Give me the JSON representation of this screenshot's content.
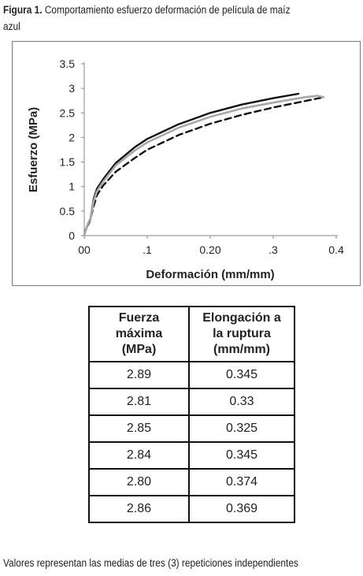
{
  "caption": {
    "label": "Figura 1",
    "separator": ". ",
    "text_line1": "Comportamiento esfuerzo deformación de película de maíz",
    "text_line2": "azul"
  },
  "chart_data": {
    "type": "line",
    "xlabel": "Deformación (mm/mm)",
    "ylabel": "Esfuerzo  (MPa)",
    "xlim": [
      0,
      0.4
    ],
    "ylim": [
      0,
      3.5
    ],
    "x_tick_values": [
      0,
      0.1,
      0.2,
      0.3,
      0.4
    ],
    "x_tick_labels": [
      "00",
      ".1",
      "0.20",
      ".3",
      "0.4"
    ],
    "y_tick_values": [
      0,
      0.5,
      1,
      1.5,
      2,
      2.5,
      3,
      3.5
    ],
    "y_tick_labels": [
      "0",
      "0.5",
      "1",
      "1.5",
      "2",
      "2.5",
      "3",
      "3.5"
    ],
    "grid": false,
    "legend": "none",
    "series": [
      {
        "style": "solid",
        "color": "#111111",
        "x": [
          0,
          0.002,
          0.005,
          0.008,
          0.01,
          0.015,
          0.02,
          0.03,
          0.05,
          0.08,
          0.1,
          0.15,
          0.2,
          0.25,
          0.3,
          0.34
        ],
        "y": [
          0,
          0.1,
          0.2,
          0.27,
          0.35,
          0.75,
          0.95,
          1.15,
          1.48,
          1.8,
          1.97,
          2.27,
          2.5,
          2.67,
          2.8,
          2.89
        ]
      },
      {
        "style": "dashed",
        "color": "#111111",
        "x": [
          0,
          0.002,
          0.005,
          0.008,
          0.01,
          0.015,
          0.02,
          0.03,
          0.05,
          0.08,
          0.1,
          0.15,
          0.2,
          0.25,
          0.3,
          0.35,
          0.38
        ],
        "y": [
          0,
          0.12,
          0.2,
          0.3,
          0.35,
          0.6,
          0.82,
          1.02,
          1.3,
          1.58,
          1.75,
          2.05,
          2.28,
          2.46,
          2.61,
          2.74,
          2.82
        ]
      },
      {
        "style": "solid",
        "color": "#a8a8a8",
        "x": [
          0,
          0.002,
          0.005,
          0.008,
          0.01,
          0.015,
          0.02,
          0.03,
          0.05,
          0.08,
          0.1,
          0.15,
          0.2,
          0.25,
          0.3,
          0.35,
          0.37,
          0.38
        ],
        "y": [
          0,
          0.1,
          0.22,
          0.3,
          0.35,
          0.7,
          0.9,
          1.1,
          1.43,
          1.73,
          1.9,
          2.2,
          2.42,
          2.59,
          2.71,
          2.82,
          2.85,
          2.82
        ]
      }
    ]
  },
  "table": {
    "headers": [
      [
        "Fuerza",
        "máxima",
        "(MPa)"
      ],
      [
        "Elongación a",
        "la ruptura",
        "(mm/mm)"
      ]
    ],
    "rows": [
      [
        "2.89",
        "0.345"
      ],
      [
        "2.81",
        "0.33"
      ],
      [
        "2.85",
        "0.325"
      ],
      [
        "2.84",
        "0.345"
      ],
      [
        "2.80",
        "0.374"
      ],
      [
        "2.86",
        "0.369"
      ]
    ]
  },
  "footnote": "Valores representan las medias de tres (3) repeticiones independientes"
}
